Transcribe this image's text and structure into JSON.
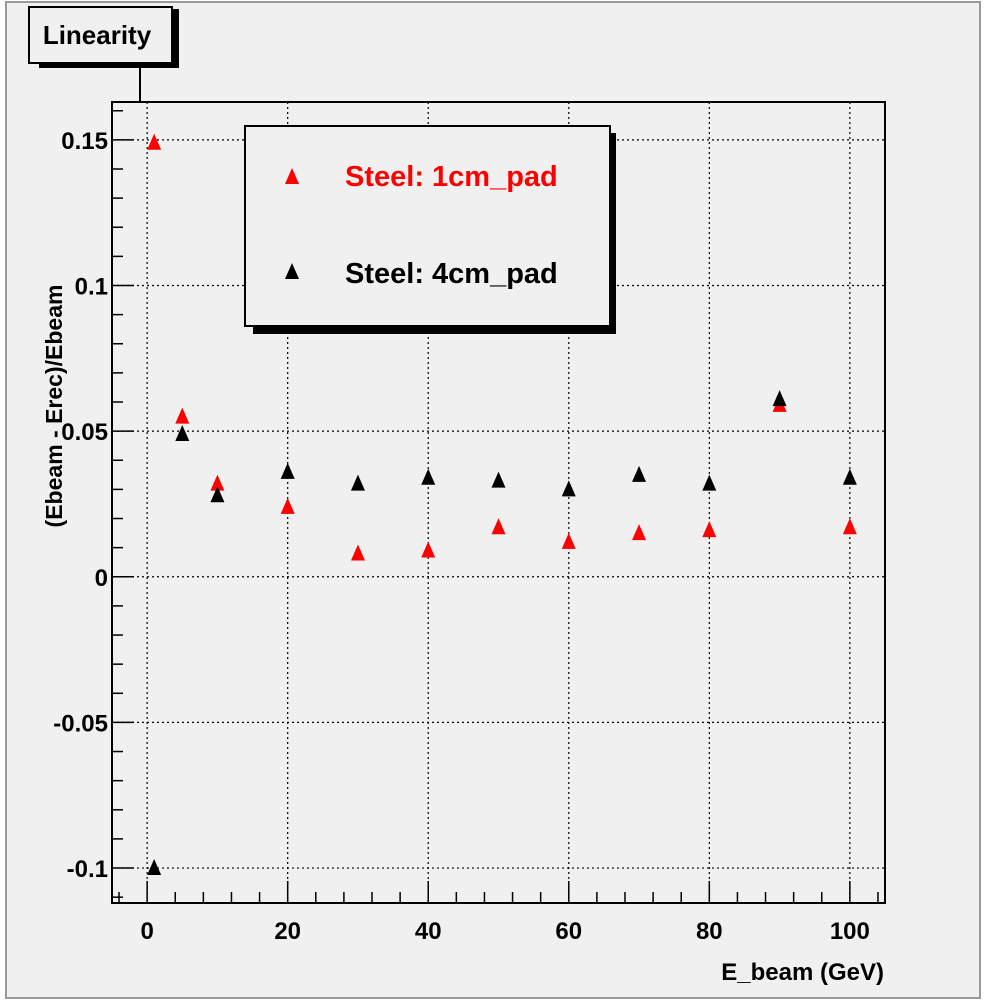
{
  "chart_data": {
    "type": "scatter",
    "title": "Linearity",
    "xlabel": "E_beam (GeV)",
    "ylabel": "(Ebeam - Erec)/Ebeam",
    "xlim": [
      -5,
      105
    ],
    "ylim": [
      -0.112,
      0.163
    ],
    "grid": true,
    "legend_position": "top-center",
    "x_ticks": [
      {
        "value": 0,
        "label": "0"
      },
      {
        "value": 20,
        "label": "20"
      },
      {
        "value": 40,
        "label": "40"
      },
      {
        "value": 60,
        "label": "60"
      },
      {
        "value": 80,
        "label": "80"
      },
      {
        "value": 100,
        "label": "100"
      }
    ],
    "y_ticks": [
      {
        "value": -0.1,
        "label": "-0.1"
      },
      {
        "value": -0.05,
        "label": "-0.05"
      },
      {
        "value": 0,
        "label": "0"
      },
      {
        "value": 0.05,
        "label": "0.05"
      },
      {
        "value": 0.1,
        "label": "0.1"
      },
      {
        "value": 0.15,
        "label": "0.15"
      }
    ],
    "series": [
      {
        "name": "Steel: 1cm_pad",
        "color": "#ff0000",
        "marker": "triangle-up",
        "x": [
          1,
          5,
          10,
          20,
          30,
          40,
          50,
          60,
          70,
          80,
          90,
          100
        ],
        "y": [
          0.149,
          0.055,
          0.032,
          0.024,
          0.008,
          0.009,
          0.017,
          0.012,
          0.015,
          0.016,
          0.059,
          0.017
        ]
      },
      {
        "name": "Steel: 4cm_pad",
        "color": "#000000",
        "marker": "triangle-up",
        "x": [
          1,
          5,
          10,
          20,
          30,
          40,
          50,
          60,
          70,
          80,
          90,
          100
        ],
        "y": [
          -0.1,
          0.049,
          0.028,
          0.036,
          0.032,
          0.034,
          0.033,
          0.03,
          0.035,
          0.032,
          0.061,
          0.034
        ]
      }
    ]
  }
}
